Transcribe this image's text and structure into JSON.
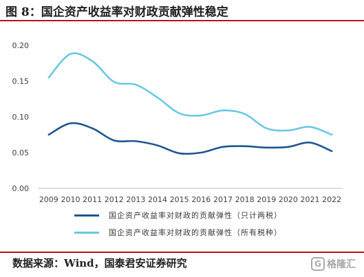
{
  "figure": {
    "title": "图 8：国企资产收益率对财政贡献弹性稳定",
    "source": "数据来源：Wind，国泰君安证券研究"
  },
  "watermark": {
    "text": "格隆汇",
    "logo_glyph": "G"
  },
  "colors": {
    "series1": "#1f5591",
    "series2": "#6ac8e2",
    "accent_rule": "#b80f1e",
    "axis": "#bfbfbf"
  },
  "chart_data": {
    "type": "line",
    "x": [
      "2009",
      "2010",
      "2011",
      "2012",
      "2013",
      "2014",
      "2015",
      "2016",
      "2017",
      "2018",
      "2019",
      "2020",
      "2021",
      "2022"
    ],
    "ylim": [
      0,
      0.2
    ],
    "yticks": [
      "0.00",
      "0.05",
      "0.10",
      "0.15",
      "0.20"
    ],
    "grid": false,
    "legend_position": "bottom",
    "smooth": true,
    "series": [
      {
        "name": "国企资产收益率对财政的贡献弹性（只计两税）",
        "values": [
          0.075,
          0.091,
          0.084,
          0.067,
          0.066,
          0.06,
          0.049,
          0.05,
          0.058,
          0.059,
          0.057,
          0.058,
          0.064,
          0.052
        ]
      },
      {
        "name": "国企资产收益率对财政的贡献弹性（所有税种）",
        "values": [
          0.155,
          0.188,
          0.178,
          0.149,
          0.145,
          0.127,
          0.105,
          0.102,
          0.109,
          0.104,
          0.084,
          0.081,
          0.086,
          0.075
        ]
      }
    ]
  }
}
